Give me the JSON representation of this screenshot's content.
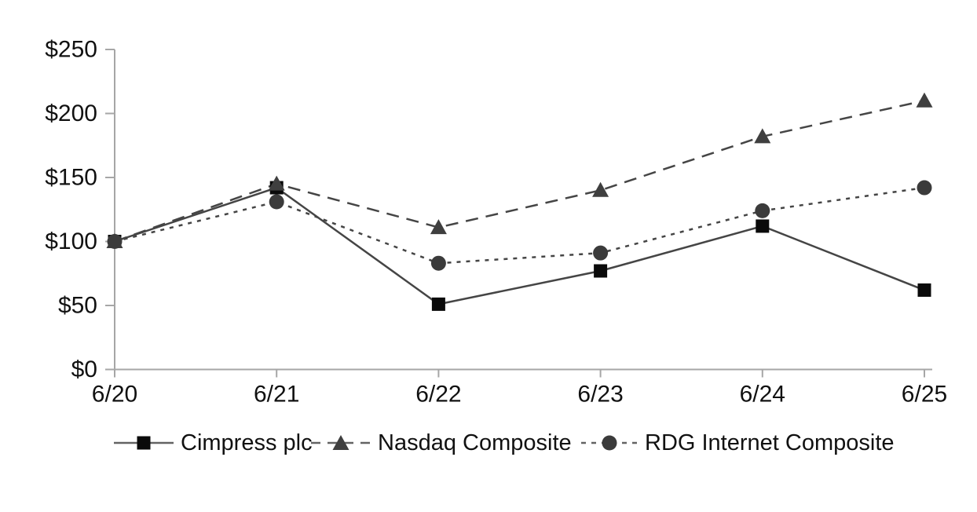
{
  "chart_data": {
    "type": "line",
    "title": "",
    "x_labels": [
      "6/20",
      "6/21",
      "6/22",
      "6/23",
      "6/24",
      "6/25"
    ],
    "y_tick_values": [
      0,
      50,
      100,
      150,
      200,
      250
    ],
    "y_tick_labels": [
      "$0",
      "$50",
      "$100",
      "$150",
      "$200",
      "$250"
    ],
    "ylim": [
      0,
      250
    ],
    "grid": "off",
    "legend_position": "bottom",
    "series": [
      {
        "name": "Cimpress plc",
        "marker": "square",
        "line_style": "solid",
        "marker_color": "#0a0a0a",
        "line_color": "#454545",
        "values": [
          100,
          142,
          51,
          77,
          112,
          62
        ]
      },
      {
        "name": "Nasdaq Composite",
        "marker": "triangle",
        "line_style": "long-dash",
        "marker_color": "#3f3f3f",
        "line_color": "#454545",
        "values": [
          100,
          145,
          111,
          140,
          182,
          210
        ]
      },
      {
        "name": "RDG Internet Composite",
        "marker": "circle",
        "line_style": "short-dash",
        "marker_color": "#3b3b3b",
        "line_color": "#454545",
        "values": [
          100,
          131,
          83,
          91,
          124,
          142
        ]
      }
    ],
    "colors": {
      "axis": "#a6a6a6",
      "text": "#111111",
      "legend_line": "#636363",
      "background": "#ffffff"
    }
  }
}
